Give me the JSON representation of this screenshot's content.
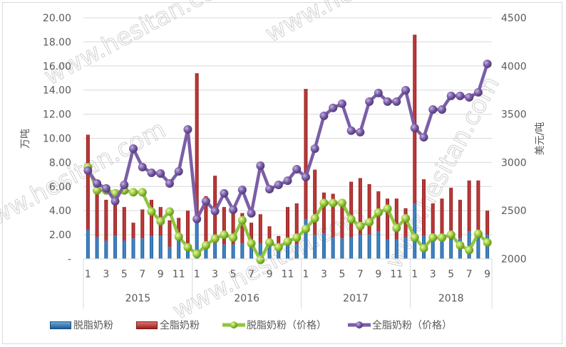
{
  "chart_data": {
    "type": "bar+line",
    "title": "",
    "xlabel": "",
    "ylabel": "万吨",
    "y2label": "美元/吨",
    "ylim": [
      0,
      20
    ],
    "y2lim": [
      2000,
      4500
    ],
    "y_ticks": [
      "-",
      "2.00",
      "4.00",
      "6.00",
      "8.00",
      "10.00",
      "12.00",
      "14.00",
      "16.00",
      "18.00",
      "20.00"
    ],
    "y2_ticks": [
      "2000",
      "2500",
      "3000",
      "3500",
      "4000",
      "4500"
    ],
    "grid": true,
    "legend_position": "bottom",
    "years": [
      {
        "label": "2015",
        "months": 12
      },
      {
        "label": "2016",
        "months": 12
      },
      {
        "label": "2017",
        "months": 12
      },
      {
        "label": "2018",
        "months": 9
      }
    ],
    "x_tick_labels": [
      "1",
      "3",
      "5",
      "7",
      "9",
      "11",
      "1",
      "3",
      "5",
      "7",
      "9",
      "11",
      "1",
      "3",
      "5",
      "7",
      "9",
      "11",
      "1",
      "3",
      "5",
      "7",
      "9"
    ],
    "categories": [
      "2015-1",
      "2015-2",
      "2015-3",
      "2015-4",
      "2015-5",
      "2015-6",
      "2015-7",
      "2015-8",
      "2015-9",
      "2015-10",
      "2015-11",
      "2015-12",
      "2016-1",
      "2016-2",
      "2016-3",
      "2016-4",
      "2016-5",
      "2016-6",
      "2016-7",
      "2016-8",
      "2016-9",
      "2016-10",
      "2016-11",
      "2016-12",
      "2017-1",
      "2017-2",
      "2017-3",
      "2017-4",
      "2017-5",
      "2017-6",
      "2017-7",
      "2017-8",
      "2017-9",
      "2017-10",
      "2017-11",
      "2017-12",
      "2018-1",
      "2018-2",
      "2018-3",
      "2018-4",
      "2018-5",
      "2018-6",
      "2018-7",
      "2018-8",
      "2018-9"
    ],
    "series": [
      {
        "name": "脱脂奶粉",
        "type": "bar",
        "axis": "left",
        "color": "#2e75b6",
        "values": [
          2.4,
          1.8,
          1.5,
          1.9,
          1.5,
          1.7,
          1.7,
          1.9,
          1.9,
          1.0,
          1.6,
          1.0,
          3.4,
          1.3,
          1.3,
          1.2,
          1.2,
          1.3,
          1.2,
          1.3,
          1.1,
          0.7,
          1.3,
          1.2,
          3.3,
          2.0,
          2.1,
          1.8,
          1.7,
          1.8,
          2.0,
          2.0,
          2.3,
          1.6,
          1.6,
          1.8,
          4.6,
          1.9,
          1.7,
          1.6,
          1.6,
          1.7,
          2.3,
          2.3,
          2.0
        ]
      },
      {
        "name": "全脂奶粉",
        "type": "bar",
        "axis": "left",
        "color": "#c0392b",
        "values": [
          7.9,
          3.6,
          3.4,
          3.0,
          2.8,
          1.3,
          2.4,
          3.0,
          2.4,
          2.2,
          1.8,
          3.0,
          12.0,
          3.9,
          5.6,
          3.1,
          2.7,
          2.5,
          1.8,
          2.4,
          1.6,
          1.2,
          3.0,
          3.4,
          10.8,
          5.4,
          3.4,
          3.6,
          2.8,
          4.6,
          4.7,
          4.2,
          3.3,
          3.4,
          3.4,
          2.4,
          14.0,
          4.7,
          2.9,
          3.4,
          4.3,
          3.2,
          4.2,
          4.2,
          2.0
        ]
      },
      {
        "name": "脱脂奶粉（价格）",
        "type": "line",
        "axis": "right",
        "color": "#8dc63f",
        "values": [
          2950,
          2710,
          2710,
          2680,
          2710,
          2690,
          2690,
          2490,
          2390,
          2490,
          2230,
          2120,
          2050,
          2140,
          2210,
          2250,
          2220,
          2400,
          2160,
          1990,
          2170,
          2120,
          2180,
          2220,
          2310,
          2420,
          2580,
          2580,
          2580,
          2410,
          2340,
          2380,
          2480,
          2520,
          2320,
          2420,
          2220,
          2110,
          2220,
          2220,
          2250,
          2140,
          2090,
          2260,
          2170
        ]
      },
      {
        "name": "全脂奶粉（价格）",
        "type": "line",
        "axis": "right",
        "color": "#7b5ea7",
        "values": [
          2915,
          2782,
          2730,
          2597,
          2767,
          3143,
          2951,
          2892,
          2885,
          2782,
          2907,
          3342,
          2413,
          2597,
          2494,
          2679,
          2509,
          2715,
          2472,
          2966,
          2723,
          2767,
          2810,
          2929,
          2848,
          3143,
          3483,
          3565,
          3609,
          3329,
          3314,
          3631,
          3720,
          3631,
          3631,
          3749,
          3357,
          3261,
          3549,
          3549,
          3690,
          3690,
          3675,
          3727,
          4022
        ]
      }
    ]
  },
  "legend": {
    "items": [
      {
        "label": "脱脂奶粉",
        "kind": "bar",
        "color": "#2e75b6"
      },
      {
        "label": "全脂奶粉",
        "kind": "bar",
        "color": "#c0392b"
      },
      {
        "label": "脱脂奶粉（价格）",
        "kind": "line",
        "color": "#8dc63f"
      },
      {
        "label": "全脂奶粉（价格）",
        "kind": "line",
        "color": "#7b5ea7"
      }
    ]
  },
  "watermark": "www.hesitan.com"
}
